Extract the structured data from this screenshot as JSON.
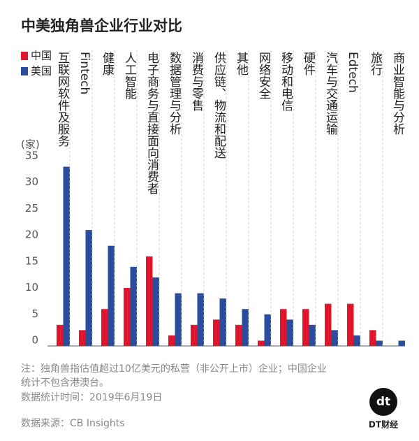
{
  "chart_data": {
    "type": "bar",
    "title": "中美独角兽企业行业对比",
    "y_label": "(家)",
    "categories": [
      "互联网软件及服务",
      "Fintech",
      "健康",
      "人工智能",
      "电子商务与直接面向消费者",
      "数据管理与分析",
      "消费与零售",
      "供应链、物流和配送",
      "其他",
      "网络安全",
      "移动和电信",
      "硬件",
      "汽车与交通运输",
      "Edtech",
      "旅行",
      "商业智能与分析"
    ],
    "series": [
      {
        "name": "中国",
        "color": "#e3142b",
        "values": [
          4,
          3,
          7,
          11,
          17,
          2,
          4,
          5,
          4,
          1,
          7,
          7,
          8,
          8,
          3,
          0
        ]
      },
      {
        "name": "美国",
        "color": "#2a4d9e",
        "values": [
          34,
          22,
          19,
          15,
          13,
          10,
          10,
          9,
          7,
          6,
          5,
          4,
          3,
          2,
          1,
          1
        ]
      }
    ],
    "ylim": [
      0,
      35
    ],
    "yticks": [
      0,
      5,
      10,
      15,
      20,
      25,
      30,
      35
    ],
    "notes": [
      "注：独角兽指估值超过10亿美元的私营（非公开上市）企业；中国企业",
      "统计不包含港澳台。",
      "数据统计时间：2019年6月19日"
    ],
    "source": "数据来源：CB Insights",
    "logo": "DT财经"
  }
}
